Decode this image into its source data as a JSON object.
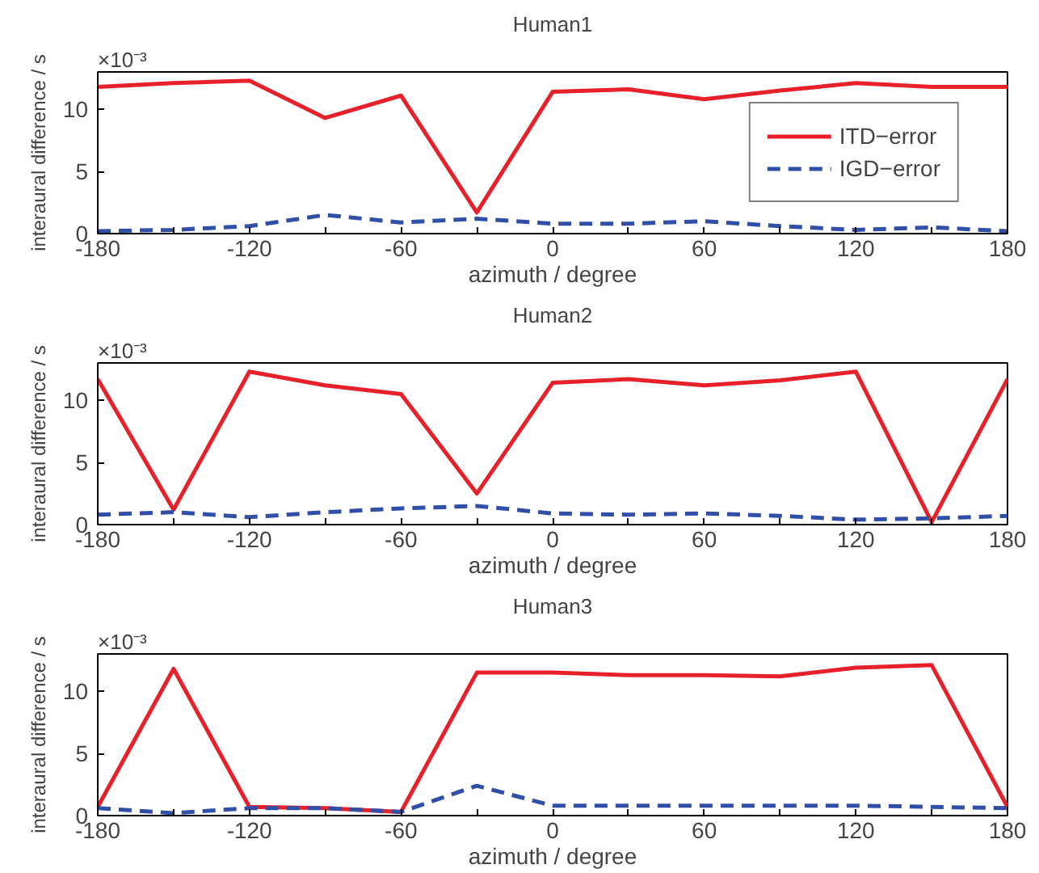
{
  "chart_data": [
    {
      "type": "line",
      "title": "Human1",
      "xlabel": "azimuth / degree",
      "ylabel": "interaural difference / s",
      "annotations": [
        "×10⁻³"
      ],
      "x": [
        -180,
        -150,
        -120,
        -90,
        -60,
        -30,
        0,
        30,
        60,
        90,
        120,
        150,
        180
      ],
      "xlim": [
        -180,
        180
      ],
      "xticks": [
        -180,
        {
          "value": -150,
          "label": null
        },
        -120,
        {
          "value": -90,
          "label": null
        },
        -60,
        {
          "value": -30,
          "label": null
        },
        0,
        {
          "value": 30,
          "label": null
        },
        60,
        {
          "value": 90,
          "label": null
        },
        120,
        {
          "value": 150,
          "label": null
        },
        180
      ],
      "ylim": [
        0,
        13
      ],
      "yticks": [
        0,
        5,
        10
      ],
      "grid": false,
      "legend": "right",
      "series": [
        {
          "name": "ITD−error",
          "color": "#e8202a",
          "line_style": "solid",
          "values": [
            11.8,
            12.1,
            12.3,
            9.3,
            11.1,
            1.7,
            11.4,
            11.6,
            10.8,
            11.5,
            12.1,
            11.8,
            11.8
          ]
        },
        {
          "name": "IGD−error",
          "color": "#2f4fa8",
          "line_style": "dashed",
          "values": [
            0.2,
            0.3,
            0.6,
            1.5,
            0.9,
            1.2,
            0.8,
            0.8,
            1.0,
            0.6,
            0.3,
            0.5,
            0.2
          ]
        }
      ]
    },
    {
      "type": "line",
      "title": "Human2",
      "xlabel": "azimuth / degree",
      "ylabel": "interaural difference / s",
      "annotations": [
        "×10⁻³"
      ],
      "x": [
        -180,
        -150,
        -120,
        -90,
        -60,
        -30,
        0,
        30,
        60,
        90,
        120,
        150,
        180
      ],
      "xlim": [
        -180,
        180
      ],
      "xticks": [
        -180,
        {
          "value": -150,
          "label": null
        },
        -120,
        {
          "value": -90,
          "label": null
        },
        -60,
        {
          "value": -30,
          "label": null
        },
        0,
        {
          "value": 30,
          "label": null
        },
        60,
        {
          "value": 90,
          "label": null
        },
        120,
        {
          "value": 150,
          "label": null
        },
        180
      ],
      "ylim": [
        0,
        13
      ],
      "yticks": [
        0,
        5,
        10
      ],
      "grid": false,
      "legend": false,
      "series": [
        {
          "color": "#e8202a",
          "line_style": "solid",
          "values": [
            11.7,
            1.2,
            12.3,
            11.2,
            10.5,
            2.5,
            11.4,
            11.7,
            11.2,
            11.6,
            12.3,
            0.2,
            11.7
          ]
        },
        {
          "color": "#2f4fa8",
          "line_style": "dashed",
          "values": [
            0.8,
            1.0,
            0.6,
            1.0,
            1.3,
            1.5,
            0.9,
            0.8,
            0.9,
            0.7,
            0.4,
            0.5,
            0.7
          ]
        }
      ]
    },
    {
      "type": "line",
      "title": "Human3",
      "xlabel": "azimuth / degree",
      "ylabel": "interaural difference / s",
      "annotations": [
        "×10⁻³"
      ],
      "x": [
        -180,
        -150,
        -120,
        -90,
        -60,
        -30,
        0,
        30,
        60,
        90,
        120,
        150,
        180
      ],
      "xlim": [
        -180,
        180
      ],
      "xticks": [
        -180,
        {
          "value": -150,
          "label": null
        },
        -120,
        {
          "value": -90,
          "label": null
        },
        -60,
        {
          "value": -30,
          "label": null
        },
        0,
        {
          "value": 30,
          "label": null
        },
        60,
        {
          "value": 90,
          "label": null
        },
        120,
        {
          "value": 150,
          "label": null
        },
        180
      ],
      "ylim": [
        0,
        13
      ],
      "yticks": [
        0,
        5,
        10
      ],
      "grid": false,
      "legend": false,
      "series": [
        {
          "color": "#e8202a",
          "line_style": "solid",
          "values": [
            0.7,
            11.8,
            0.7,
            0.6,
            0.3,
            11.5,
            11.5,
            11.3,
            11.3,
            11.2,
            11.9,
            12.1,
            0.7
          ]
        },
        {
          "color": "#2f4fa8",
          "line_style": "dashed",
          "values": [
            0.6,
            0.2,
            0.6,
            0.6,
            0.3,
            2.4,
            0.8,
            0.8,
            0.8,
            0.8,
            0.8,
            0.7,
            0.6
          ]
        }
      ]
    }
  ]
}
